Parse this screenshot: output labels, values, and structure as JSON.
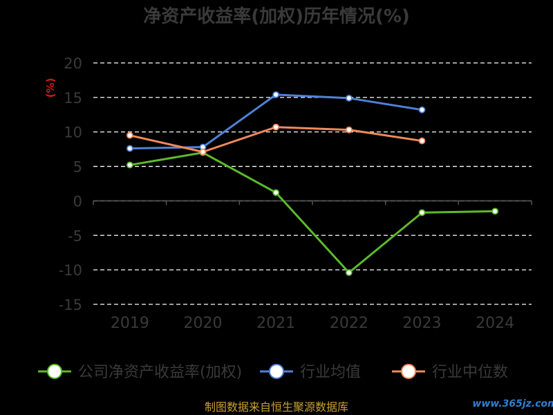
{
  "chart_data": {
    "type": "line",
    "title": "净资产收益率(加权)历年情况(%)",
    "ylabel": "(%)",
    "categories": [
      "2019",
      "2020",
      "2021",
      "2022",
      "2023",
      "2024"
    ],
    "ylim": [
      -15,
      20
    ],
    "yticks": [
      20,
      15,
      10,
      5,
      0,
      -5,
      -10,
      -15
    ],
    "grid": true,
    "legend_position": "bottom",
    "series": [
      {
        "name": "公司净资产收益率(加权)",
        "color": "#5dbb2a",
        "values": [
          5.2,
          7.0,
          1.2,
          -10.4,
          -1.7,
          -1.5
        ]
      },
      {
        "name": "行业均值",
        "color": "#4f82d8",
        "values": [
          7.6,
          7.8,
          15.4,
          14.9,
          13.2,
          null
        ]
      },
      {
        "name": "行业中位数",
        "color": "#f18a5b",
        "values": [
          9.5,
          7.1,
          10.7,
          10.3,
          8.7,
          null
        ]
      }
    ]
  },
  "source": "制图数据来自恒生聚源数据库",
  "watermark": "www.365jz.com"
}
